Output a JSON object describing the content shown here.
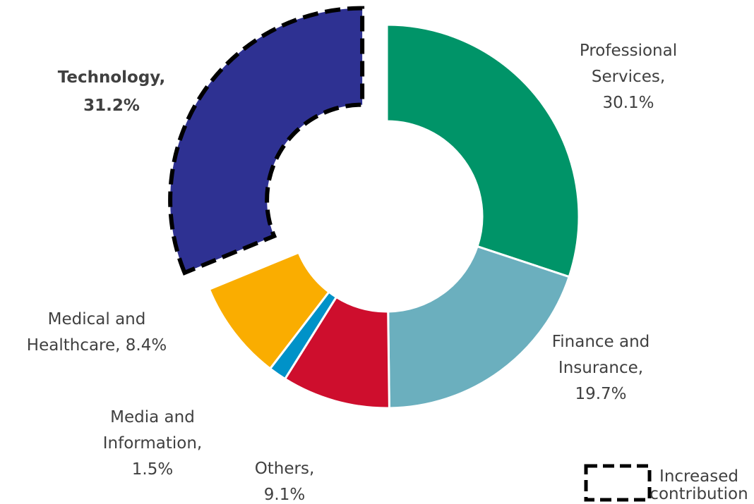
{
  "chart_data": {
    "type": "donut",
    "categories": [
      "Professional Services",
      "Finance and Insurance",
      "Others",
      "Media and Information",
      "Medical and Healthcare",
      "Technology"
    ],
    "values": [
      30.1,
      19.7,
      9.1,
      1.5,
      8.4,
      31.2
    ],
    "value_labels": [
      [
        "Professional",
        "Services,",
        "30.1%"
      ],
      [
        "Finance and",
        "Insurance,",
        "19.7%"
      ],
      [
        "Others,",
        "9.1%"
      ],
      [
        "Media and",
        "Information,",
        "1.5%"
      ],
      [
        "Medical and",
        "Healthcare, 8.4%"
      ],
      [
        "Technology,",
        "31.2%"
      ]
    ],
    "colors": [
      "#009468",
      "#6bafbe",
      "#ce0e2d",
      "#0092c8",
      "#faad00",
      "#2e3192"
    ],
    "highlight": 5,
    "legend": {
      "label": [
        "Increased",
        "contribution"
      ]
    }
  }
}
